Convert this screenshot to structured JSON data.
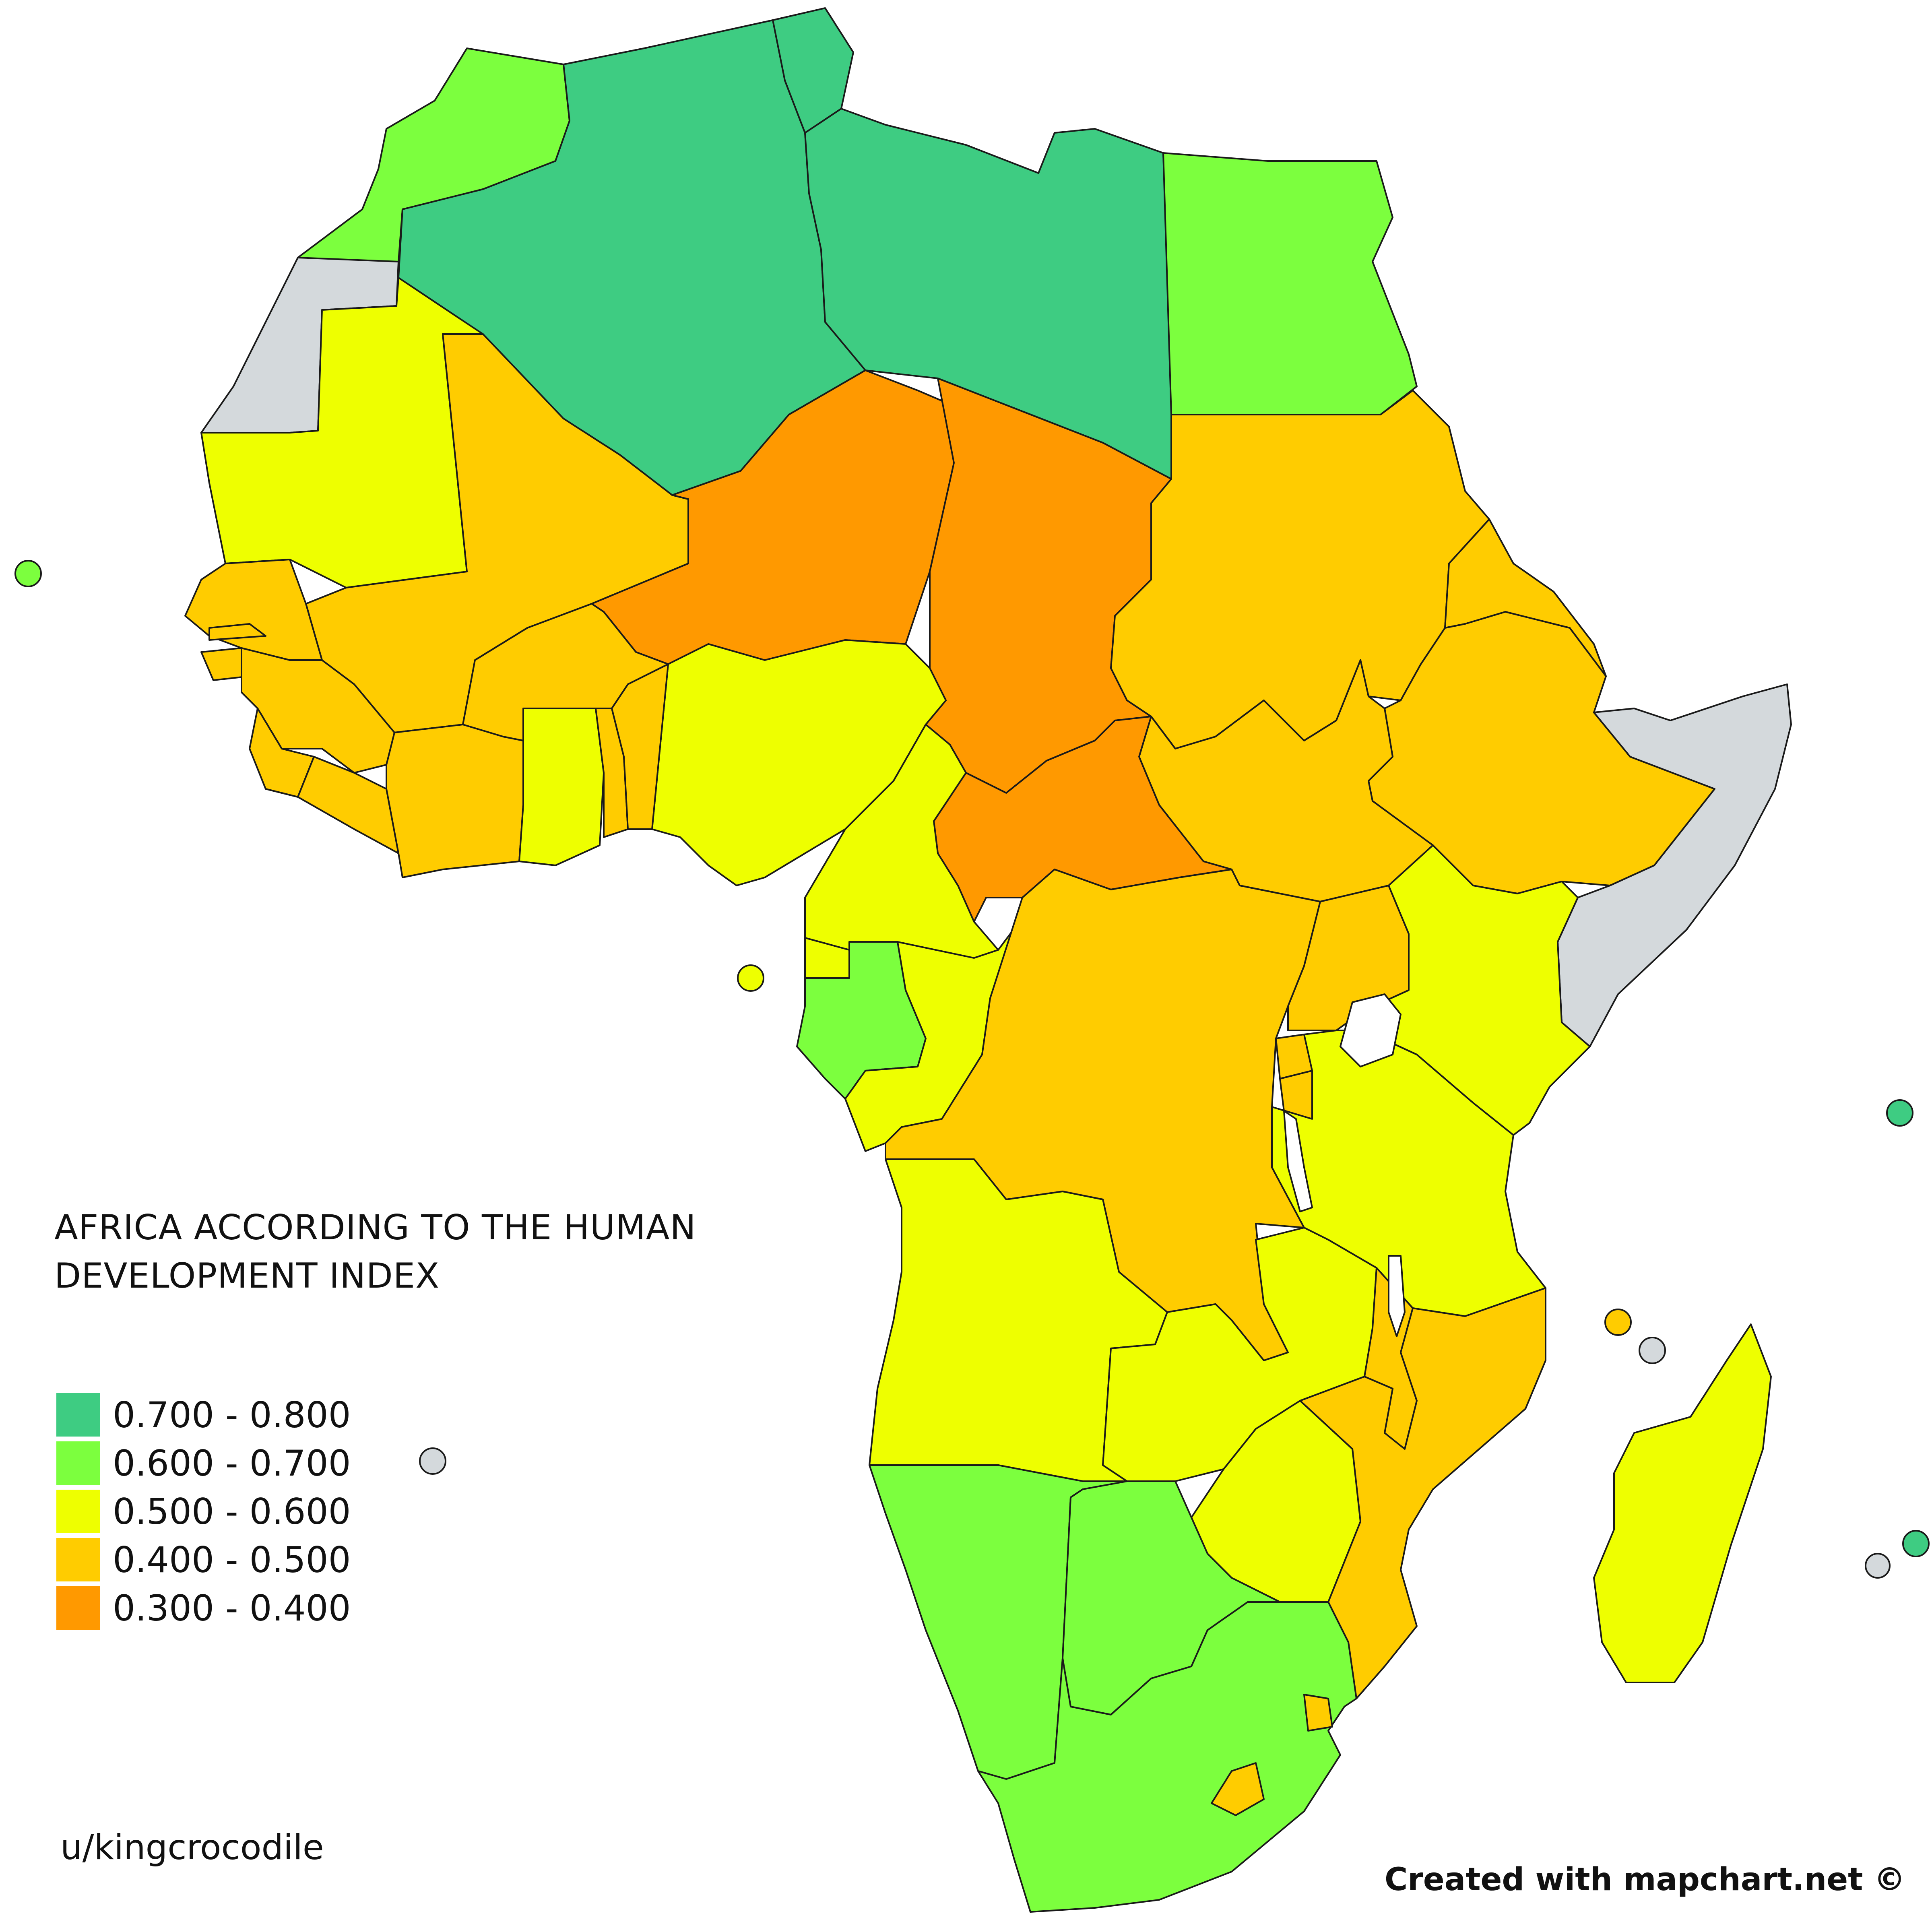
{
  "title_line1": "AFRICA ACCORDING TO THE HUMAN",
  "title_line2": "DEVELOPMENT INDEX",
  "legend": [
    {
      "label": "0.700 - 0.800",
      "color": "#3ecc82"
    },
    {
      "label": "0.600 - 0.700",
      "color": "#7cff3e"
    },
    {
      "label": "0.500 - 0.600",
      "color": "#eeff00"
    },
    {
      "label": "0.400 - 0.500",
      "color": "#ffcc00"
    },
    {
      "label": "0.300 - 0.400",
      "color": "#ff9900"
    }
  ],
  "no_data_color": "#d4d9dc",
  "author": "u/kingcrocodile",
  "credit": "Created with mapchart.net ©"
}
